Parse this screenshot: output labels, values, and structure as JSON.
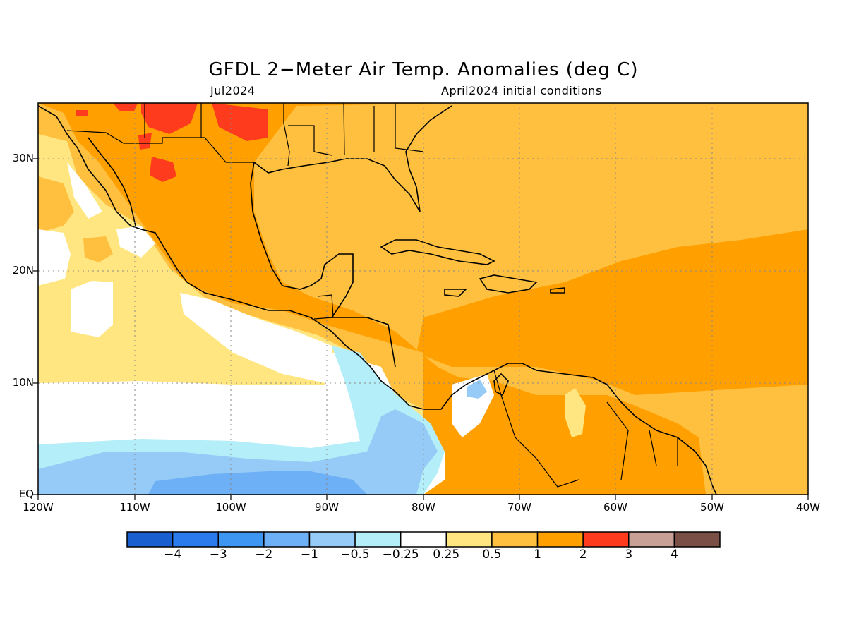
{
  "title": "GFDL 2−Meter Air Temp. Anomalies (deg C)",
  "subtitle_left": "Jul2024",
  "subtitle_right": "April2024 initial conditions",
  "axes": {
    "lon_labels": [
      "120W",
      "110W",
      "100W",
      "90W",
      "80W",
      "70W",
      "60W",
      "50W",
      "40W"
    ],
    "lat_labels": [
      "EQ",
      "10N",
      "20N",
      "30N"
    ]
  },
  "legend": {
    "colors": [
      "#1a5fd0",
      "#2b7bec",
      "#3c96f2",
      "#6eb0f5",
      "#96cbf7",
      "#b4eef8",
      "#ffffff",
      "#ffe680",
      "#ffc040",
      "#ffa000",
      "#ff3b1e",
      "#c8a095",
      "#7a4f45"
    ],
    "labels": [
      "−4",
      "−3",
      "−2",
      "−1",
      "−0.5",
      "−0.25",
      "0.25",
      "0.5",
      "1",
      "2",
      "3",
      "4"
    ]
  }
}
